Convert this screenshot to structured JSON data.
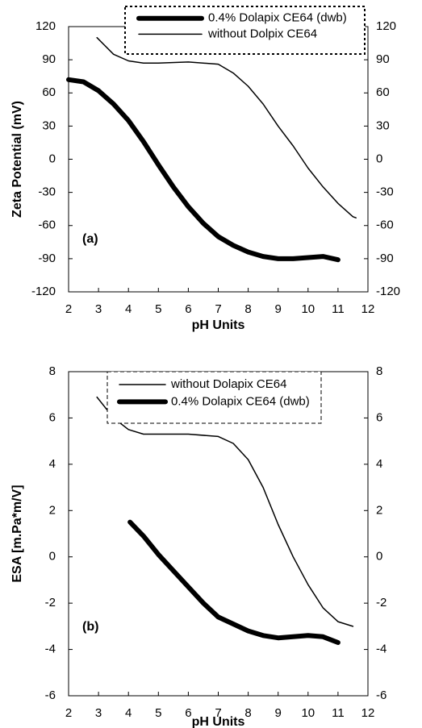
{
  "chart_data": [
    {
      "type": "line",
      "annotation": "(a)",
      "x_label": "pH Units",
      "y_label": "Zeta Potential (mV)",
      "xlim": [
        2,
        12
      ],
      "xticks": [
        2,
        3,
        4,
        5,
        6,
        7,
        8,
        9,
        10,
        11,
        12
      ],
      "ylim": [
        -120,
        120
      ],
      "yticks": [
        -120,
        -90,
        -60,
        -30,
        0,
        30,
        60,
        90,
        120
      ],
      "y2lim": [
        -120,
        120
      ],
      "y2ticks": [
        -120,
        -90,
        -60,
        -30,
        0,
        30,
        60,
        90,
        120
      ],
      "legend_border": "dotted",
      "series": [
        {
          "name": "0.4% Dolapix CE64 (dwb)",
          "color": "#000000",
          "line_width": 6,
          "x": [
            2,
            2.5,
            3,
            3.5,
            4,
            4.5,
            5,
            5.5,
            6,
            6.5,
            7,
            7.5,
            8,
            8.5,
            9,
            9.5,
            10,
            10.5,
            11
          ],
          "values": [
            72,
            70,
            62,
            50,
            35,
            16,
            -5,
            -25,
            -43,
            -58,
            -70,
            -78,
            -84,
            -88,
            -90,
            -90,
            -89,
            -88,
            -91
          ]
        },
        {
          "name": "without Dolpix CE64",
          "color": "#000000",
          "line_width": 1.5,
          "x": [
            2.95,
            3.5,
            4,
            4.5,
            5,
            6,
            7,
            7.5,
            8,
            8.5,
            9,
            9.5,
            10,
            10.5,
            11,
            11.5,
            11.6
          ],
          "values": [
            110,
            95,
            89,
            87,
            87,
            88,
            86,
            78,
            66,
            50,
            30,
            12,
            -8,
            -25,
            -40,
            -52,
            -53
          ]
        }
      ]
    },
    {
      "type": "line",
      "annotation": "(b)",
      "x_label": "pH Units",
      "y_label": "ESA [m.Pa*m/V]",
      "xlim": [
        2,
        12
      ],
      "xticks": [
        2,
        3,
        4,
        5,
        6,
        7,
        8,
        9,
        10,
        11,
        12
      ],
      "ylim": [
        -6,
        8
      ],
      "yticks": [
        -6,
        -4,
        -2,
        0,
        2,
        4,
        6,
        8
      ],
      "y2lim": [
        -6,
        8
      ],
      "y2ticks": [
        -6,
        -4,
        -2,
        0,
        2,
        4,
        6,
        8
      ],
      "legend_border": "dashed",
      "series": [
        {
          "name": "without Dolapix CE64",
          "color": "#000000",
          "line_width": 1.5,
          "x": [
            2.95,
            3.5,
            4,
            4.5,
            5,
            6,
            7,
            7.5,
            8,
            8.5,
            9,
            9.5,
            10,
            10.5,
            11,
            11.5
          ],
          "values": [
            6.9,
            6.0,
            5.5,
            5.3,
            5.3,
            5.3,
            5.2,
            4.9,
            4.2,
            3.0,
            1.4,
            0.0,
            -1.2,
            -2.2,
            -2.8,
            -3.0
          ]
        },
        {
          "name": "0.4% Dolapix CE64 (dwb)",
          "color": "#000000",
          "line_width": 6,
          "x": [
            4.05,
            4.5,
            5,
            5.5,
            6,
            6.5,
            7,
            7.5,
            8,
            8.5,
            9,
            9.5,
            10,
            10.5,
            11
          ],
          "values": [
            1.5,
            0.9,
            0.1,
            -0.6,
            -1.3,
            -2.0,
            -2.6,
            -2.9,
            -3.2,
            -3.4,
            -3.5,
            -3.45,
            -3.4,
            -3.45,
            -3.7
          ]
        }
      ]
    }
  ]
}
